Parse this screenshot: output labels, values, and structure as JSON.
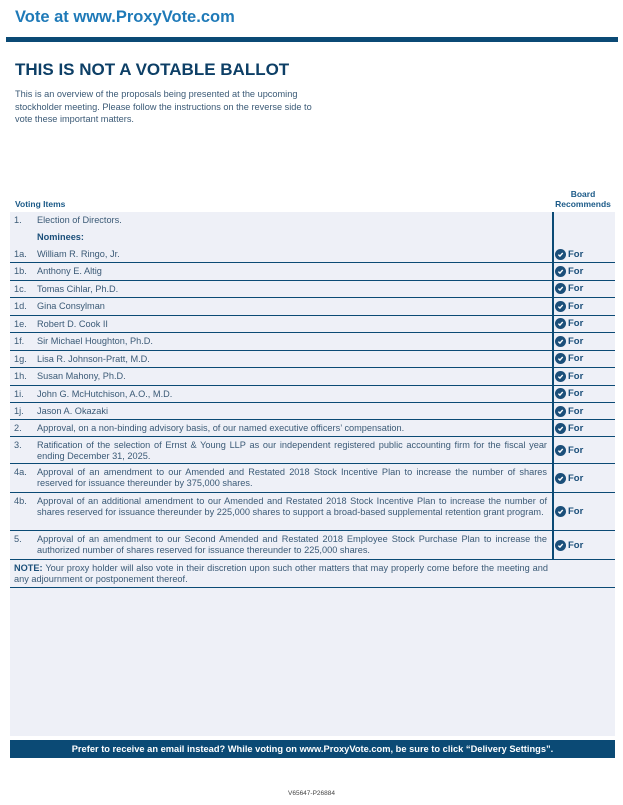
{
  "header": {
    "title": "Vote at www.ProxyVote.com"
  },
  "main": {
    "heading": "THIS IS NOT A VOTABLE BALLOT",
    "intro": "This is an overview of the proposals being presented at the upcoming stockholder meeting. Please follow the instructions on the reverse side to vote these important matters."
  },
  "table": {
    "col_items": "Voting Items",
    "col_board": "Board Recommends",
    "icon": "check-circle-icon",
    "rows": [
      {
        "num": "1.",
        "text": "Election of Directors.",
        "rec": ""
      },
      {
        "num": "",
        "text": "Nominees:",
        "rec": "",
        "bold": true
      },
      {
        "num": "1a.",
        "text": "William R. Ringo, Jr.",
        "rec": "For"
      },
      {
        "num": "1b.",
        "text": "Anthony E. Altig",
        "rec": "For"
      },
      {
        "num": "1c.",
        "text": "Tomas Cihlar, Ph.D.",
        "rec": "For"
      },
      {
        "num": "1d.",
        "text": "Gina Consylman",
        "rec": "For"
      },
      {
        "num": "1e.",
        "text": "Robert D. Cook II",
        "rec": "For"
      },
      {
        "num": "1f.",
        "text": "Sir Michael Houghton, Ph.D.",
        "rec": "For"
      },
      {
        "num": "1g.",
        "text": "Lisa R. Johnson-Pratt, M.D.",
        "rec": "For"
      },
      {
        "num": "1h.",
        "text": "Susan Mahony, Ph.D.",
        "rec": "For"
      },
      {
        "num": "1i.",
        "text": "John G. McHutchison, A.O., M.D.",
        "rec": "For"
      },
      {
        "num": "1j.",
        "text": "Jason A. Okazaki",
        "rec": "For"
      },
      {
        "num": "2.",
        "text": "Approval, on a non-binding advisory basis, of our named executive officers’ compensation.",
        "rec": "For"
      },
      {
        "num": "3.",
        "text": "Ratification of the selection of Ernst & Young LLP as our independent registered public accounting firm for the fiscal year ending December 31, 2025.",
        "rec": "For"
      },
      {
        "num": "4a.",
        "text": "Approval of an amendment to our Amended and Restated 2018 Stock Incentive Plan to increase the number of shares reserved for issuance thereunder by 375,000 shares.",
        "rec": "For"
      },
      {
        "num": "4b.",
        "text": "Approval of an additional amendment to our Amended and Restated 2018 Stock Incentive Plan to increase the number of shares reserved for issuance thereunder by 225,000 shares to support a broad-based supplemental retention grant program.",
        "rec": "For"
      },
      {
        "num": "5.",
        "text": "Approval of an amendment to our Second Amended and Restated 2018 Employee Stock Purchase Plan to increase the authorized number of shares reserved for issuance thereunder to 225,000 shares.",
        "rec": "For"
      }
    ],
    "note_label": "NOTE:",
    "note_text": " Your proxy holder will also vote in their discretion upon such other matters that may properly come before the meeting and any adjournment or postponement thereof."
  },
  "footer": {
    "banner": "Prefer to receive an email instead? While voting on www.ProxyVote.com, be sure to click “Delivery Settings”.",
    "code": "V65647-P26884"
  },
  "colors": {
    "brand": "#0b4a75",
    "link": "#1f7ab8",
    "table_bg": "#eef0f7"
  }
}
